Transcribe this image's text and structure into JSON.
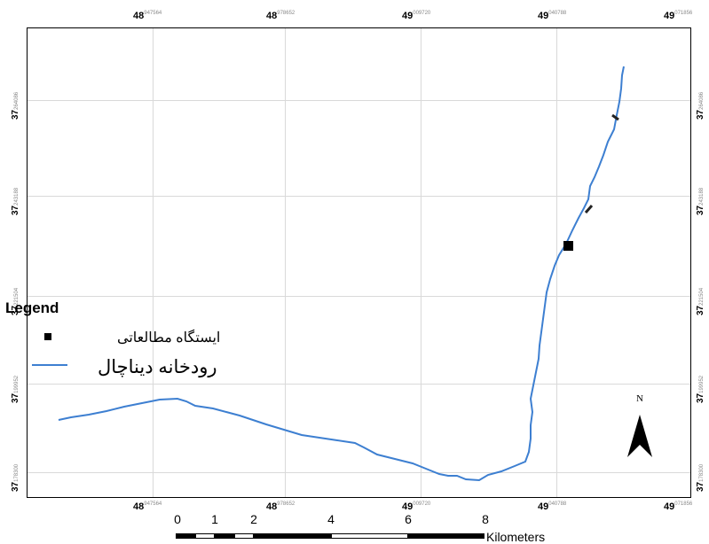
{
  "map": {
    "top_axis_labels": [
      {
        "main": "48",
        "sup": "947564"
      },
      {
        "main": "48",
        "sup": "978652"
      },
      {
        "main": "49",
        "sup": "009720"
      },
      {
        "main": "49",
        "sup": "040788"
      },
      {
        "main": "49",
        "sup": "071856"
      }
    ],
    "bottom_axis_labels": [
      {
        "main": "48",
        "sup": "947564"
      },
      {
        "main": "48",
        "sup": "978652"
      },
      {
        "main": "49",
        "sup": "009720"
      },
      {
        "main": "49",
        "sup": "040788"
      },
      {
        "main": "49",
        "sup": "071856"
      }
    ],
    "left_axis_labels": [
      {
        "main": "37",
        "sup": "264086"
      },
      {
        "main": "37",
        "sup": "243188"
      },
      {
        "main": "37",
        "sup": "221504"
      },
      {
        "main": "37",
        "sup": "199952"
      },
      {
        "main": "37",
        "sup": "178300"
      }
    ],
    "right_axis_labels": [
      {
        "main": "37",
        "sup": "264086"
      },
      {
        "main": "37",
        "sup": "243188"
      },
      {
        "main": "37",
        "sup": "221504"
      },
      {
        "main": "37",
        "sup": "199952"
      },
      {
        "main": "37",
        "sup": "178300"
      }
    ],
    "river_color": "#3d7fd1",
    "station_color": "#000000"
  },
  "legend": {
    "title": "Legend",
    "station_label": "ایستگاه مطالعاتی",
    "river_label": "رودخانه دیناچال"
  },
  "north_arrow": {
    "label": "N"
  },
  "scale_bar": {
    "ticks": [
      "0",
      "1",
      "2",
      "4",
      "6",
      "8"
    ],
    "unit": "Kilometers"
  }
}
